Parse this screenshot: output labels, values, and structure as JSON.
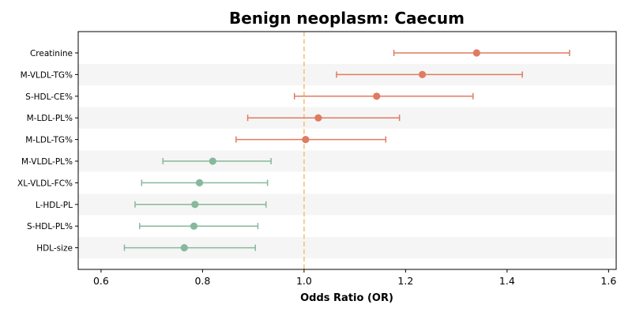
{
  "chart_data": {
    "type": "forest",
    "title": "Benign neoplasm: Caecum",
    "xlabel": "Odds Ratio (OR)",
    "ylabel": "",
    "xlim": [
      0.555,
      1.615
    ],
    "xticks": [
      "0.6",
      "0.8",
      "1.0",
      "1.2",
      "1.4",
      "1.6"
    ],
    "reference_line": 1.0,
    "grid": false,
    "row_shading": "alternating",
    "colors": {
      "above": "#e07b5f",
      "below": "#86b89c",
      "reference": "#f5c07a",
      "band": "#f5f5f5"
    },
    "rows": [
      {
        "label": "Creatinine",
        "or": 1.34,
        "lower": 1.177,
        "upper": 1.523
      },
      {
        "label": "M-VLDL-TG%",
        "or": 1.233,
        "lower": 1.064,
        "upper": 1.43
      },
      {
        "label": "S-HDL-CE%",
        "or": 1.143,
        "lower": 0.981,
        "upper": 1.333
      },
      {
        "label": "M-LDL-PL%",
        "or": 1.028,
        "lower": 0.889,
        "upper": 1.188
      },
      {
        "label": "M-LDL-TG%",
        "or": 1.003,
        "lower": 0.866,
        "upper": 1.161
      },
      {
        "label": "M-VLDL-PL%",
        "or": 0.82,
        "lower": 0.722,
        "upper": 0.935
      },
      {
        "label": "XL-VLDL-FC%",
        "or": 0.794,
        "lower": 0.68,
        "upper": 0.928
      },
      {
        "label": "L-HDL-PL",
        "or": 0.785,
        "lower": 0.667,
        "upper": 0.925
      },
      {
        "label": "S-HDL-PL%",
        "or": 0.783,
        "lower": 0.676,
        "upper": 0.909
      },
      {
        "label": "HDL-size",
        "or": 0.764,
        "lower": 0.646,
        "upper": 0.904
      }
    ]
  }
}
